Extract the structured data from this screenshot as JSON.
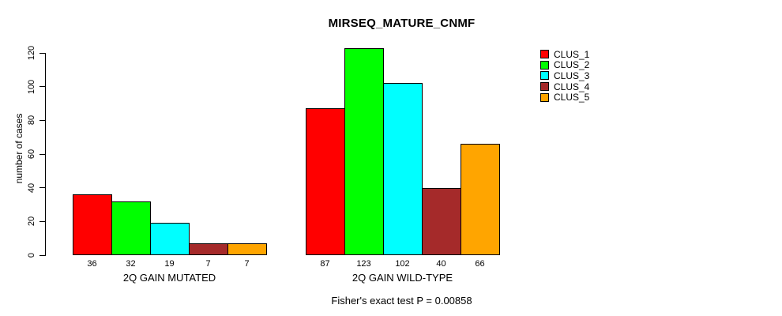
{
  "chart_data": {
    "type": "bar",
    "title": "MIRSEQ_MATURE_CNMF",
    "ylabel": "number of cases",
    "annotation": "Fisher's exact test P = 0.00858",
    "ylim": [
      0,
      120
    ],
    "yticks": [
      0,
      20,
      40,
      60,
      80,
      100,
      120
    ],
    "grid": false,
    "legend_position": "right",
    "categories": [
      "2Q GAIN MUTATED",
      "2Q GAIN WILD-TYPE"
    ],
    "series": [
      {
        "name": "CLUS_1",
        "color": "#ff0000",
        "values": [
          36,
          87
        ]
      },
      {
        "name": "CLUS_2",
        "color": "#00ff00",
        "values": [
          32,
          123
        ]
      },
      {
        "name": "CLUS_3",
        "color": "#00ffff",
        "values": [
          19,
          102
        ]
      },
      {
        "name": "CLUS_4",
        "color": "#a52a2a",
        "values": [
          7,
          40
        ]
      },
      {
        "name": "CLUS_5",
        "color": "#ffa500",
        "values": [
          7,
          66
        ]
      }
    ]
  }
}
